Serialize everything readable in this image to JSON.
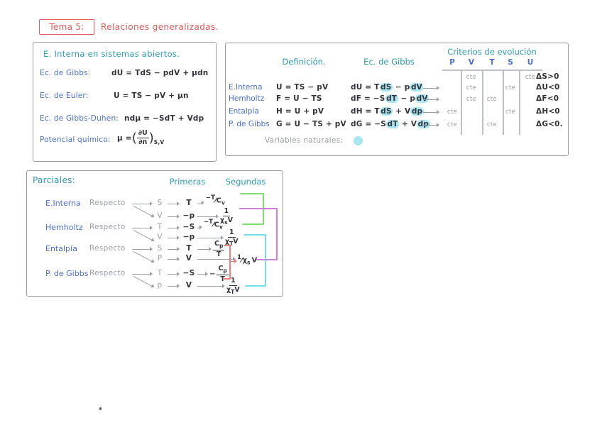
{
  "colors": {
    "red": "#e4595c",
    "teal": "#2b9db4",
    "blue": "#4a6fd0",
    "ink": "#33343b",
    "gray": "#9aa0a8",
    "highlight": "#a9e6ef",
    "box_border": "#9b9b9b",
    "connector_green": "#82db74",
    "connector_purple": "#cd7fd8",
    "connector_cyan": "#7bdced",
    "connector_red": "#f37c7c"
  },
  "title": {
    "box_label": "Tema 5:",
    "text": "Relaciones generalizadas."
  },
  "open_systems": {
    "heading": "E. Interna en sistemas abiertos.",
    "lines": [
      {
        "label": "Ec. de Gibbs:",
        "eq": "dU = TdS − pdV + μdn"
      },
      {
        "label": "Ec. de Euler:",
        "eq": "U = TS − pV + μn"
      },
      {
        "label": "Ec. de Gibbs-Duhen:",
        "eq": "ndμ = −SdT + Vdp"
      }
    ],
    "potential": {
      "label": "Potencial químico:",
      "prefix": "μ =",
      "num": "∂U",
      "den": "∂n",
      "sub": "S,V"
    }
  },
  "potentials": {
    "header_definition": "Definición.",
    "header_gibbs": "Ec. de Gibbs",
    "header_criteria": "Criterios de evolución",
    "criteria_columns": [
      "P",
      "V",
      "T",
      "S",
      "U"
    ],
    "note_label": "Variables naturales:",
    "rows": [
      {
        "label": "",
        "definition": "",
        "gibbs": [],
        "arrow": false,
        "criteria": {
          "V": "cte",
          "U": "cte"
        },
        "delta": "ΔS>0"
      },
      {
        "label": "E.Interna",
        "definition": "U = TS − pV",
        "gibbs": [
          {
            "t": "dU = T"
          },
          {
            "t": "dS",
            "hl": true
          },
          {
            "t": " − p"
          },
          {
            "t": "dV",
            "hl": true
          }
        ],
        "arrow": true,
        "criteria": {
          "V": "cte",
          "S": "cte"
        },
        "delta": "ΔU<0"
      },
      {
        "label": "Hemholtz",
        "definition": "F = U − TS",
        "gibbs": [
          {
            "t": "dF = −S"
          },
          {
            "t": "dT",
            "hl": true
          },
          {
            "t": " − p"
          },
          {
            "t": "dV",
            "hl": true
          }
        ],
        "arrow": true,
        "criteria": {
          "V": "cte",
          "T": "cte"
        },
        "delta": "ΔF<0"
      },
      {
        "label": "Entalpía",
        "definition": "H = U + pV",
        "gibbs": [
          {
            "t": "dH = T"
          },
          {
            "t": "dS",
            "hl": true
          },
          {
            "t": " + V"
          },
          {
            "t": "dp",
            "hl": true
          }
        ],
        "arrow": true,
        "criteria": {
          "P": "cte",
          "S": "cte"
        },
        "delta": "ΔH<0"
      },
      {
        "label": "P. de Gibbs",
        "definition": "G = U − TS + pV",
        "gibbs": [
          {
            "t": "dG = −S"
          },
          {
            "t": "dT",
            "hl": true
          },
          {
            "t": " + V"
          },
          {
            "t": "dp",
            "hl": true
          }
        ],
        "arrow": true,
        "criteria": {
          "P": "cte",
          "T": "cte"
        },
        "delta": "ΔG<0."
      }
    ]
  },
  "partials": {
    "heading": "Parciales:",
    "col_first": "Primeras",
    "col_second": "Segundas",
    "respecto": "Respecto",
    "groups": [
      {
        "label": "E.Interna",
        "branches": [
          {
            "var": "S",
            "first": "T",
            "second": {
              "form": "slash",
              "num": "−T",
              "den": "C",
              "densub": "v"
            }
          },
          {
            "var": "V",
            "first": "−p",
            "second": {
              "form": "vfrac",
              "num": "1",
              "den": "χ",
              "densub": "s",
              "dentail": "V"
            }
          }
        ]
      },
      {
        "label": "Hemholtz",
        "branches": [
          {
            "var": "T",
            "first": "−S",
            "second": {
              "form": "slash",
              "num": "−T",
              "den": "C",
              "densub": "v"
            }
          },
          {
            "var": "V",
            "first": "−p",
            "second": {
              "form": "vfrac",
              "num": "1",
              "den": "χ",
              "densub": "T",
              "dentail": "V"
            }
          }
        ]
      },
      {
        "label": "Entalpía",
        "branches": [
          {
            "var": "S",
            "first": "T",
            "second": {
              "form": "vfrac",
              "num": "C",
              "numsub": "p",
              "den": "T"
            }
          },
          {
            "var": "P",
            "first": "V",
            "second": {
              "form": "inline",
              "num": "1",
              "den": "χ",
              "densub": "s",
              "dentail": "V"
            }
          }
        ]
      },
      {
        "label": "P. de Gibbs",
        "branches": [
          {
            "var": "T",
            "first": "−S",
            "second": {
              "form": "vfrac",
              "neg": "−",
              "num": "C",
              "numsub": "p",
              "den": "T"
            }
          },
          {
            "var": "p",
            "first": "V",
            "second": {
              "form": "vfrac",
              "num": "1",
              "den": "χ",
              "densub": "T",
              "dentail": "V"
            }
          }
        ]
      }
    ]
  }
}
